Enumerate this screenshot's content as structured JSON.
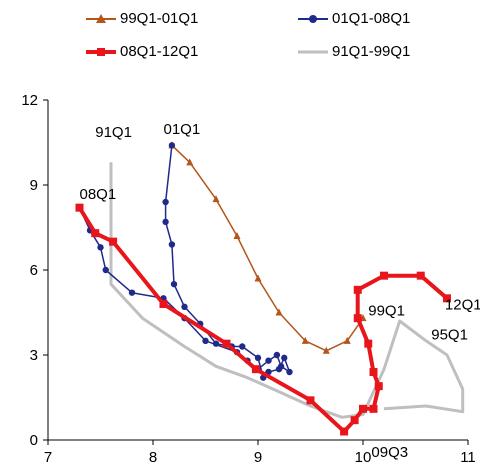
{
  "chart_data": {
    "type": "line",
    "title": "",
    "xlabel": "",
    "ylabel": "",
    "xlim": [
      7,
      11
    ],
    "ylim": [
      0,
      12
    ],
    "x_ticks": [
      "7",
      "8",
      "9",
      "10",
      "11"
    ],
    "y_ticks": [
      "0",
      "3",
      "6",
      "9",
      "12"
    ],
    "legend_position": "top",
    "series": [
      {
        "name": "99Q1-01Q1",
        "color": "#b5541b",
        "marker": "triangle",
        "points": [
          [
            8.18,
            10.4
          ],
          [
            8.35,
            9.8
          ],
          [
            8.6,
            8.5
          ],
          [
            8.8,
            7.2
          ],
          [
            9.0,
            5.7
          ],
          [
            9.2,
            4.5
          ],
          [
            9.45,
            3.5
          ],
          [
            9.65,
            3.15
          ],
          [
            9.85,
            3.5
          ],
          [
            10.0,
            4.3
          ]
        ]
      },
      {
        "name": "01Q1-08Q1",
        "color": "#1f2a8a",
        "marker": "circle",
        "points": [
          [
            8.18,
            10.4
          ],
          [
            8.12,
            8.4
          ],
          [
            8.12,
            7.7
          ],
          [
            8.18,
            6.9
          ],
          [
            8.2,
            5.5
          ],
          [
            8.3,
            4.7
          ],
          [
            8.45,
            4.1
          ],
          [
            8.6,
            3.4
          ],
          [
            8.75,
            3.3
          ],
          [
            8.85,
            3.3
          ],
          [
            9.0,
            2.9
          ],
          [
            9.05,
            2.2
          ],
          [
            9.1,
            2.4
          ],
          [
            9.2,
            2.5
          ],
          [
            9.25,
            2.9
          ],
          [
            9.3,
            2.4
          ],
          [
            9.22,
            2.6
          ],
          [
            9.18,
            3.0
          ],
          [
            9.1,
            2.8
          ],
          [
            9.0,
            2.5
          ],
          [
            8.9,
            2.8
          ],
          [
            8.8,
            3.1
          ],
          [
            8.5,
            3.5
          ],
          [
            8.3,
            4.3
          ],
          [
            8.1,
            5.0
          ],
          [
            7.8,
            5.2
          ],
          [
            7.55,
            6.0
          ],
          [
            7.5,
            6.8
          ],
          [
            7.4,
            7.4
          ],
          [
            7.3,
            8.2
          ]
        ]
      },
      {
        "name": "08Q1-12Q1",
        "color": "#e8161b",
        "marker": "square",
        "points": [
          [
            7.3,
            8.2
          ],
          [
            7.45,
            7.3
          ],
          [
            7.62,
            7.0
          ],
          [
            8.1,
            4.8
          ],
          [
            8.7,
            3.4
          ],
          [
            8.98,
            2.5
          ],
          [
            9.5,
            1.4
          ],
          [
            9.82,
            0.3
          ],
          [
            9.92,
            0.7
          ],
          [
            10.0,
            1.1
          ],
          [
            10.1,
            1.1
          ],
          [
            10.15,
            1.9
          ],
          [
            10.1,
            2.4
          ],
          [
            10.05,
            3.4
          ],
          [
            9.95,
            4.3
          ],
          [
            9.95,
            5.3
          ],
          [
            10.2,
            5.8
          ],
          [
            10.55,
            5.8
          ],
          [
            10.8,
            5.0
          ]
        ]
      },
      {
        "name": "91Q1-99Q1",
        "color": "#bfbfbf",
        "marker": "none",
        "points": [
          [
            7.6,
            9.8
          ],
          [
            7.6,
            5.5
          ],
          [
            7.9,
            4.3
          ],
          [
            8.3,
            3.3
          ],
          [
            8.6,
            2.6
          ],
          [
            8.9,
            2.2
          ],
          [
            9.2,
            1.7
          ],
          [
            9.5,
            1.2
          ],
          [
            9.8,
            0.8
          ],
          [
            10.0,
            0.9
          ],
          [
            10.2,
            2.5
          ],
          [
            10.35,
            4.2
          ],
          [
            10.6,
            3.5
          ],
          [
            10.8,
            3.0
          ],
          [
            10.95,
            1.8
          ],
          [
            10.95,
            1.0
          ],
          [
            10.6,
            1.2
          ],
          [
            10.2,
            1.1
          ]
        ]
      }
    ],
    "annotations": [
      {
        "text": "91Q1",
        "x": 7.45,
        "y": 10.7
      },
      {
        "text": "01Q1",
        "x": 8.1,
        "y": 10.8
      },
      {
        "text": "08Q1",
        "x": 7.3,
        "y": 8.5
      },
      {
        "text": "99Q1",
        "x": 10.05,
        "y": 4.4
      },
      {
        "text": "12Q1",
        "x": 10.78,
        "y": 4.6
      },
      {
        "text": "95Q1",
        "x": 10.65,
        "y": 3.55
      },
      {
        "text": "09Q3",
        "x": 10.08,
        "y": -0.6
      }
    ]
  }
}
